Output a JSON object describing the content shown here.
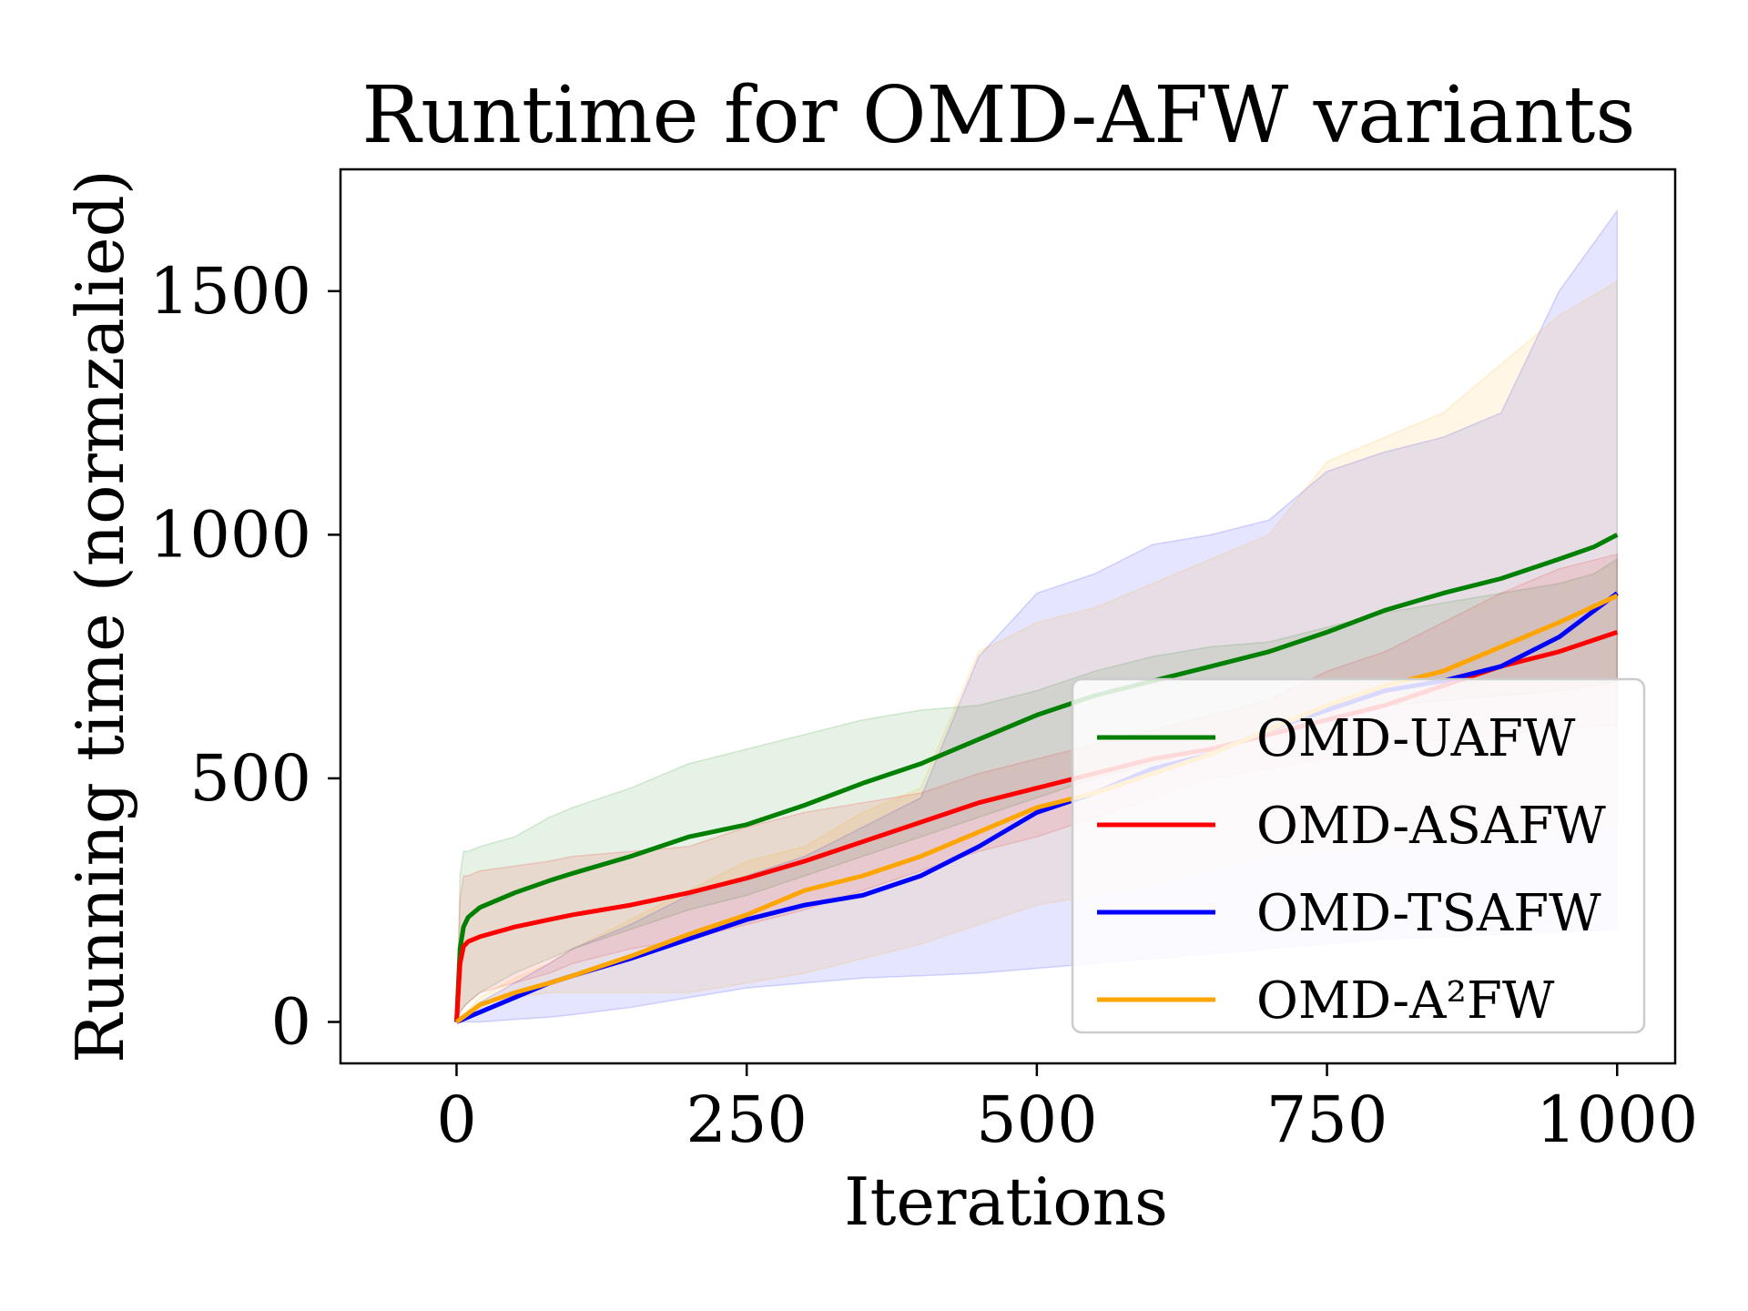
{
  "chart_data": {
    "type": "line",
    "title": "Runtime for OMD-AFW variants",
    "xlabel": "Iterations",
    "ylabel": "Running time (normzalied)",
    "xlim": [
      -100,
      1050
    ],
    "ylim": [
      -85,
      1750
    ],
    "xticks": [
      0,
      250,
      500,
      750,
      1000
    ],
    "yticks": [
      0,
      500,
      1000,
      1500
    ],
    "xtick_labels": [
      "0",
      "250",
      "500",
      "750",
      "1000"
    ],
    "ytick_labels": [
      "0",
      "500",
      "1000",
      "1500"
    ],
    "grid": false,
    "legend_position": "lower-right",
    "series": [
      {
        "name": "OMD-UAFW",
        "color": "#008000",
        "x": [
          0,
          3,
          6,
          10,
          20,
          50,
          80,
          100,
          150,
          200,
          250,
          300,
          350,
          400,
          450,
          500,
          550,
          600,
          650,
          700,
          750,
          800,
          850,
          900,
          950,
          980,
          1000
        ],
        "y": [
          0,
          150,
          195,
          215,
          235,
          265,
          290,
          305,
          340,
          380,
          405,
          445,
          490,
          530,
          580,
          630,
          670,
          700,
          730,
          760,
          800,
          845,
          880,
          910,
          950,
          975,
          1000
        ],
        "band_upper": [
          0,
          300,
          350,
          350,
          360,
          380,
          420,
          440,
          480,
          530,
          560,
          590,
          620,
          640,
          650,
          680,
          720,
          750,
          770,
          780,
          810,
          840,
          860,
          880,
          900,
          920,
          950
        ],
        "band_lower": [
          0,
          20,
          30,
          40,
          60,
          100,
          130,
          150,
          190,
          230,
          260,
          300,
          340,
          380,
          420,
          460,
          500,
          530,
          560,
          590,
          620,
          650,
          660,
          670,
          680,
          690,
          700
        ]
      },
      {
        "name": "OMD-ASAFW",
        "color": "#ff0000",
        "x": [
          0,
          3,
          6,
          10,
          20,
          50,
          80,
          100,
          150,
          200,
          250,
          300,
          350,
          400,
          450,
          500,
          550,
          600,
          650,
          700,
          750,
          800,
          850,
          900,
          950,
          1000
        ],
        "y": [
          0,
          120,
          155,
          165,
          175,
          195,
          210,
          220,
          240,
          265,
          295,
          330,
          370,
          410,
          450,
          480,
          510,
          540,
          560,
          590,
          620,
          650,
          690,
          730,
          760,
          800
        ],
        "band_upper": [
          0,
          250,
          300,
          300,
          310,
          320,
          330,
          340,
          350,
          360,
          400,
          430,
          450,
          470,
          510,
          540,
          570,
          600,
          630,
          660,
          720,
          760,
          820,
          880,
          930,
          960
        ],
        "band_lower": [
          0,
          20,
          30,
          40,
          60,
          80,
          100,
          120,
          150,
          170,
          200,
          230,
          270,
          310,
          350,
          380,
          420,
          460,
          500,
          520,
          540,
          560,
          580,
          590,
          600,
          610
        ]
      },
      {
        "name": "OMD-TSAFW",
        "color": "#0000ff",
        "x": [
          0,
          20,
          50,
          80,
          100,
          150,
          200,
          250,
          300,
          350,
          400,
          450,
          500,
          550,
          600,
          650,
          700,
          750,
          800,
          850,
          900,
          950,
          1000
        ],
        "y": [
          0,
          20,
          50,
          80,
          95,
          130,
          170,
          210,
          240,
          260,
          300,
          360,
          430,
          470,
          520,
          550,
          600,
          640,
          680,
          700,
          730,
          790,
          880
        ],
        "band_upper": [
          0,
          40,
          80,
          120,
          150,
          200,
          260,
          300,
          340,
          400,
          460,
          750,
          880,
          920,
          980,
          1000,
          1030,
          1130,
          1170,
          1200,
          1250,
          1500,
          1665
        ],
        "band_lower": [
          0,
          0,
          5,
          10,
          15,
          30,
          50,
          70,
          80,
          90,
          95,
          100,
          110,
          120,
          130,
          140,
          150,
          160,
          170,
          175,
          180,
          185,
          190
        ]
      },
      {
        "name": "OMD-A²FW",
        "color": "#ffa500",
        "x": [
          0,
          20,
          50,
          80,
          100,
          150,
          200,
          250,
          300,
          350,
          400,
          450,
          500,
          550,
          600,
          650,
          700,
          750,
          800,
          850,
          900,
          950,
          1000
        ],
        "y": [
          0,
          35,
          60,
          80,
          95,
          135,
          180,
          220,
          270,
          300,
          340,
          390,
          440,
          470,
          510,
          550,
          600,
          650,
          690,
          720,
          770,
          820,
          875
        ],
        "band_upper": [
          0,
          50,
          90,
          120,
          150,
          210,
          270,
          330,
          360,
          430,
          480,
          760,
          820,
          850,
          900,
          950,
          1000,
          1150,
          1200,
          1250,
          1350,
          1450,
          1520
        ],
        "band_lower": [
          0,
          40,
          50,
          60,
          60,
          60,
          60,
          80,
          100,
          130,
          160,
          200,
          240,
          260,
          280,
          310,
          340,
          350,
          360,
          370,
          380,
          390,
          400
        ]
      }
    ]
  }
}
